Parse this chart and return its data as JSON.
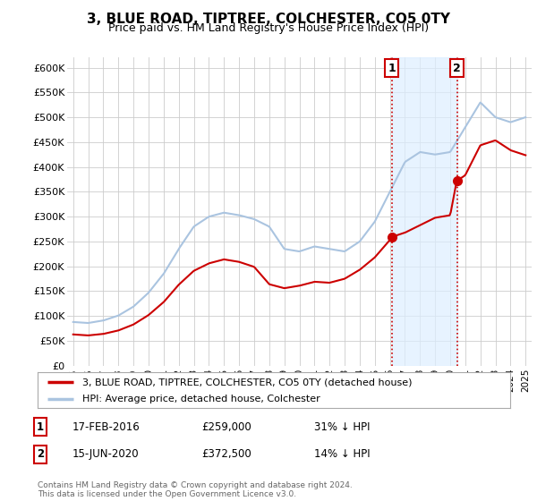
{
  "title": "3, BLUE ROAD, TIPTREE, COLCHESTER, CO5 0TY",
  "subtitle": "Price paid vs. HM Land Registry's House Price Index (HPI)",
  "legend_line1": "3, BLUE ROAD, TIPTREE, COLCHESTER, CO5 0TY (detached house)",
  "legend_line2": "HPI: Average price, detached house, Colchester",
  "footnote": "Contains HM Land Registry data © Crown copyright and database right 2024.\nThis data is licensed under the Open Government Licence v3.0.",
  "transaction1": {
    "label": "1",
    "date": "17-FEB-2016",
    "price": "£259,000",
    "pct": "31% ↓ HPI"
  },
  "transaction2": {
    "label": "2",
    "date": "15-JUN-2020",
    "price": "£372,500",
    "pct": "14% ↓ HPI"
  },
  "hpi_color": "#aac4e0",
  "price_color": "#cc0000",
  "marker_color": "#cc0000",
  "dashed_color": "#cc0000",
  "shade_color": "#ddeeff",
  "ylim": [
    0,
    620000
  ],
  "yticks": [
    0,
    50000,
    100000,
    150000,
    200000,
    250000,
    300000,
    350000,
    400000,
    450000,
    500000,
    550000,
    600000
  ],
  "ytick_labels": [
    "£0",
    "£50K",
    "£100K",
    "£150K",
    "£200K",
    "£250K",
    "£300K",
    "£350K",
    "£400K",
    "£450K",
    "£500K",
    "£550K",
    "£600K"
  ],
  "background_color": "#ffffff",
  "plot_bg_color": "#ffffff",
  "transaction1_x": 2016.12,
  "transaction1_y": 259000,
  "transaction2_x": 2020.46,
  "transaction2_y": 372500,
  "xlim_left": 1994.6,
  "xlim_right": 2025.4
}
